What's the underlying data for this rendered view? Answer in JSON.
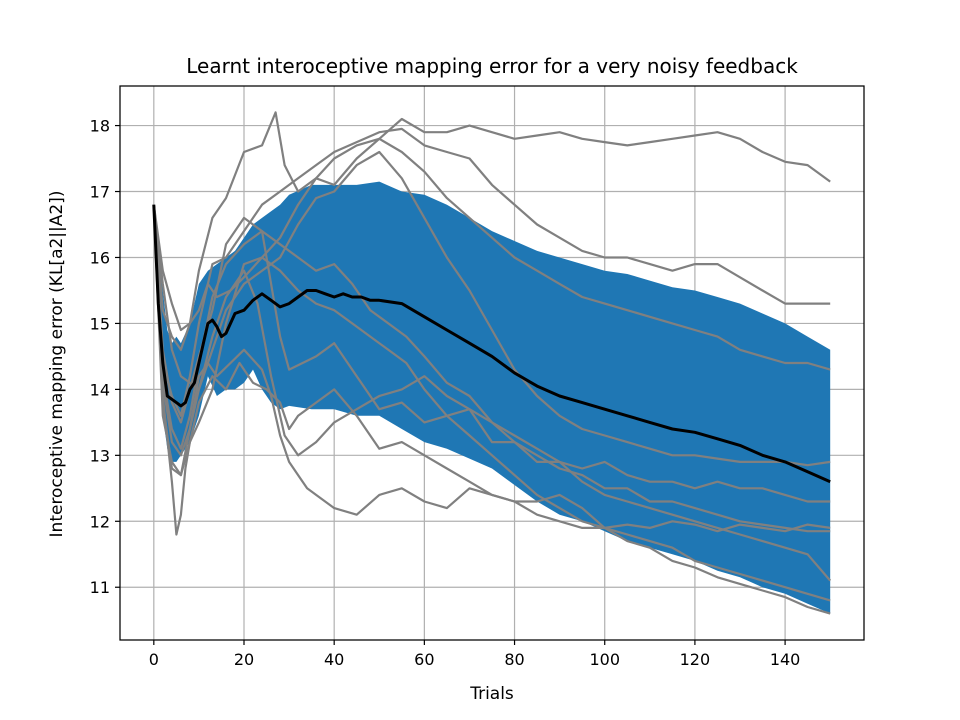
{
  "chart_data": {
    "type": "line",
    "title": "Learnt interoceptive mapping error for a very noisy feedback",
    "xlabel": "Trials",
    "ylabel": "Interoceptive mapping error (KL[a2||A2])",
    "xlim": [
      -7.5,
      157.5
    ],
    "ylim": [
      10.2,
      18.6
    ],
    "xticks": [
      0,
      20,
      40,
      60,
      80,
      100,
      120,
      140
    ],
    "yticks": [
      11,
      12,
      13,
      14,
      15,
      16,
      17,
      18
    ],
    "grid": true,
    "colors": {
      "band": "#1f77b4",
      "individual": "#808080",
      "mean": "#000000",
      "grid": "#b0b0b0"
    },
    "band": {
      "x": [
        0,
        1,
        2,
        3,
        4,
        5,
        6,
        8,
        10,
        12,
        14,
        16,
        18,
        20,
        22,
        24,
        26,
        28,
        30,
        35,
        40,
        45,
        50,
        55,
        60,
        65,
        70,
        75,
        80,
        85,
        90,
        95,
        100,
        105,
        110,
        115,
        120,
        125,
        130,
        135,
        140,
        145,
        150
      ],
      "upper": [
        16.8,
        16.3,
        15.5,
        14.9,
        14.7,
        14.8,
        14.7,
        15.0,
        15.6,
        15.8,
        15.9,
        16.0,
        16.1,
        16.3,
        16.5,
        16.6,
        16.7,
        16.8,
        16.95,
        17.1,
        17.1,
        17.1,
        17.15,
        17.0,
        16.95,
        16.8,
        16.6,
        16.4,
        16.25,
        16.1,
        16.0,
        15.9,
        15.8,
        15.75,
        15.65,
        15.55,
        15.5,
        15.4,
        15.3,
        15.15,
        15.0,
        14.8,
        14.6
      ],
      "lower": [
        16.8,
        15.0,
        13.6,
        13.1,
        12.9,
        12.9,
        13.0,
        13.2,
        13.6,
        14.2,
        13.9,
        14.0,
        14.0,
        14.1,
        14.3,
        14.0,
        13.8,
        13.7,
        13.75,
        13.7,
        13.7,
        13.6,
        13.6,
        13.4,
        13.2,
        13.1,
        12.95,
        12.8,
        12.55,
        12.3,
        12.1,
        12.0,
        11.85,
        11.7,
        11.6,
        11.5,
        11.4,
        11.25,
        11.15,
        11.0,
        10.9,
        10.75,
        10.6
      ]
    },
    "mean": {
      "x": [
        0,
        1,
        2,
        3,
        4,
        5,
        6,
        7,
        8,
        9,
        10,
        11,
        12,
        13,
        14,
        15,
        16,
        17,
        18,
        20,
        22,
        24,
        26,
        28,
        30,
        32,
        34,
        36,
        38,
        40,
        42,
        44,
        46,
        48,
        50,
        55,
        60,
        65,
        70,
        75,
        80,
        85,
        90,
        95,
        100,
        105,
        110,
        115,
        120,
        125,
        130,
        135,
        140,
        145,
        150
      ],
      "y": [
        16.8,
        15.3,
        14.4,
        13.9,
        13.85,
        13.8,
        13.75,
        13.8,
        14.0,
        14.1,
        14.4,
        14.7,
        15.0,
        15.05,
        14.95,
        14.8,
        14.85,
        15.0,
        15.15,
        15.2,
        15.35,
        15.45,
        15.35,
        15.25,
        15.3,
        15.4,
        15.5,
        15.5,
        15.45,
        15.4,
        15.45,
        15.4,
        15.4,
        15.35,
        15.35,
        15.3,
        15.1,
        14.9,
        14.7,
        14.5,
        14.25,
        14.05,
        13.9,
        13.8,
        13.7,
        13.6,
        13.5,
        13.4,
        13.35,
        13.25,
        13.15,
        13.0,
        12.9,
        12.75,
        12.6
      ]
    },
    "series": [
      {
        "x": [
          0,
          2,
          4,
          6,
          8,
          10,
          13,
          16,
          20,
          24,
          27,
          29,
          32,
          36,
          40,
          45,
          50,
          55,
          60,
          65,
          70,
          75,
          80,
          85,
          90,
          95,
          100,
          105,
          110,
          115,
          120,
          125,
          130,
          135,
          140,
          145,
          150
        ],
        "y": [
          16.8,
          15.2,
          14.8,
          14.6,
          15.0,
          15.8,
          16.6,
          16.9,
          17.6,
          17.7,
          18.2,
          17.4,
          17.0,
          17.2,
          17.1,
          17.5,
          17.8,
          18.1,
          17.9,
          17.9,
          18.0,
          17.9,
          17.8,
          17.85,
          17.9,
          17.8,
          17.75,
          17.7,
          17.75,
          17.8,
          17.85,
          17.9,
          17.8,
          17.6,
          17.45,
          17.4,
          17.15
        ]
      },
      {
        "x": [
          0,
          2,
          4,
          6,
          8,
          10,
          13,
          16,
          20,
          24,
          28,
          32,
          36,
          40,
          45,
          50,
          55,
          60,
          65,
          70,
          75,
          80,
          85,
          90,
          95,
          100,
          105,
          110,
          115,
          120,
          125,
          130,
          135,
          140,
          145,
          150
        ],
        "y": [
          16.8,
          14.4,
          13.9,
          13.6,
          14.2,
          15.0,
          15.9,
          16.0,
          16.4,
          16.8,
          17.0,
          17.2,
          17.4,
          17.6,
          17.75,
          17.9,
          17.95,
          17.7,
          17.6,
          17.5,
          17.1,
          16.8,
          16.5,
          16.3,
          16.1,
          16.0,
          16.0,
          15.9,
          15.8,
          15.9,
          15.9,
          15.7,
          15.5,
          15.3,
          15.3,
          15.3
        ]
      },
      {
        "x": [
          0,
          2,
          4,
          6,
          8,
          10,
          12,
          14,
          17,
          20,
          24,
          26,
          28,
          30,
          32,
          34,
          36,
          40,
          45,
          50,
          55,
          60,
          65,
          70,
          75,
          80,
          85,
          90,
          95,
          100,
          105,
          110,
          115,
          120,
          125,
          130,
          135,
          140,
          145,
          150
        ],
        "y": [
          16.8,
          13.8,
          12.8,
          12.7,
          13.4,
          14.2,
          14.4,
          14.2,
          14.4,
          14.6,
          14.3,
          13.9,
          13.3,
          12.9,
          12.7,
          12.5,
          12.4,
          12.2,
          12.1,
          12.4,
          12.5,
          12.3,
          12.2,
          12.5,
          12.4,
          12.3,
          12.1,
          12.0,
          11.9,
          11.9,
          11.95,
          11.9,
          12.0,
          11.95,
          11.85,
          11.95,
          11.9,
          11.85,
          11.95,
          11.9
        ]
      },
      {
        "x": [
          0,
          2,
          4,
          6,
          8,
          10,
          13,
          16,
          20,
          22,
          24,
          26,
          28,
          30,
          33,
          36,
          40,
          45,
          50,
          55,
          60,
          65,
          70,
          75,
          80,
          85,
          90,
          95,
          100,
          105,
          110,
          115,
          120,
          125,
          130,
          135,
          140,
          145,
          150
        ],
        "y": [
          16.8,
          14.6,
          13.8,
          13.5,
          14.0,
          14.5,
          15.2,
          16.2,
          16.6,
          16.5,
          16.4,
          15.6,
          14.8,
          14.3,
          14.4,
          14.5,
          14.7,
          14.2,
          13.7,
          13.8,
          13.5,
          13.6,
          13.7,
          13.2,
          13.2,
          12.9,
          12.9,
          12.8,
          12.9,
          12.7,
          12.6,
          12.6,
          12.5,
          12.6,
          12.5,
          12.5,
          12.4,
          12.3,
          12.3
        ]
      },
      {
        "x": [
          0,
          2,
          4,
          6,
          8,
          10,
          13,
          16,
          20,
          24,
          28,
          32,
          36,
          40,
          45,
          50,
          55,
          60,
          65,
          70,
          75,
          80,
          85,
          90,
          95,
          100,
          105,
          110,
          115,
          120,
          125,
          130,
          135,
          140,
          145,
          150
        ],
        "y": [
          16.8,
          15.6,
          14.6,
          14.2,
          14.1,
          14.0,
          14.6,
          15.2,
          15.6,
          15.8,
          16.0,
          16.5,
          16.9,
          17.0,
          17.4,
          17.6,
          17.2,
          16.6,
          16.0,
          15.5,
          14.9,
          14.3,
          13.9,
          13.6,
          13.4,
          13.3,
          13.2,
          13.1,
          13.0,
          13.0,
          12.95,
          12.9,
          12.9,
          12.9,
          12.85,
          12.9
        ]
      },
      {
        "x": [
          0,
          2,
          4,
          6,
          8,
          10,
          13,
          16,
          19,
          22,
          25,
          28,
          30,
          32,
          36,
          40,
          45,
          50,
          55,
          60,
          65,
          70,
          75,
          80,
          85,
          90,
          95,
          100,
          105,
          110,
          115,
          120,
          125,
          130,
          135,
          140,
          145,
          150
        ],
        "y": [
          16.8,
          13.6,
          12.9,
          12.7,
          13.2,
          13.8,
          14.2,
          14.0,
          14.4,
          14.1,
          14.0,
          13.8,
          13.4,
          13.6,
          13.8,
          14.0,
          13.6,
          13.1,
          13.2,
          13.0,
          12.8,
          12.6,
          12.4,
          12.3,
          12.3,
          12.4,
          12.2,
          11.9,
          11.8,
          11.7,
          11.6,
          11.4,
          11.3,
          11.2,
          11.1,
          11.0,
          10.9,
          10.8
        ]
      },
      {
        "x": [
          0,
          2,
          4,
          6,
          8,
          10,
          13,
          16,
          20,
          24,
          28,
          32,
          36,
          40,
          44,
          48,
          52,
          56,
          60,
          65,
          70,
          75,
          80,
          85,
          90,
          95,
          100,
          105,
          110,
          115,
          120,
          125,
          130,
          135,
          140,
          145,
          150
        ],
        "y": [
          16.8,
          14.2,
          13.4,
          13.1,
          13.6,
          14.4,
          15.4,
          15.9,
          16.2,
          16.4,
          16.2,
          16.0,
          15.8,
          15.9,
          15.6,
          15.2,
          15.0,
          14.8,
          14.5,
          14.1,
          13.9,
          13.5,
          13.3,
          13.1,
          12.9,
          12.6,
          12.4,
          12.3,
          12.2,
          12.1,
          12.0,
          11.9,
          11.8,
          11.7,
          11.6,
          11.5,
          11.1
        ]
      },
      {
        "x": [
          0,
          2,
          4,
          5,
          6,
          7,
          8,
          10,
          13,
          16,
          20,
          24,
          28,
          32,
          36,
          40,
          44,
          48,
          52,
          56,
          60,
          65,
          70,
          75,
          80,
          85,
          90,
          95,
          100,
          105,
          110,
          115,
          120,
          125,
          130,
          135,
          140,
          145,
          150
        ],
        "y": [
          16.8,
          13.9,
          12.6,
          11.8,
          12.1,
          12.8,
          13.2,
          13.5,
          14.0,
          15.0,
          15.9,
          16.0,
          15.8,
          15.5,
          15.3,
          15.2,
          15.0,
          14.8,
          14.6,
          14.4,
          14.0,
          13.6,
          13.3,
          13.0,
          12.7,
          12.4,
          12.2,
          12.0,
          11.9,
          11.7,
          11.6,
          11.4,
          11.3,
          11.15,
          11.05,
          10.95,
          10.85,
          10.7,
          10.6
        ]
      },
      {
        "x": [
          0,
          2,
          4,
          6,
          8,
          10,
          13,
          16,
          20,
          23,
          26,
          29,
          32,
          36,
          40,
          45,
          50,
          55,
          60,
          65,
          70,
          75,
          80,
          85,
          90,
          95,
          100,
          105,
          110,
          115,
          120,
          125,
          130,
          135,
          140,
          145,
          150
        ],
        "y": [
          16.8,
          14.1,
          13.2,
          13.0,
          13.4,
          14.0,
          14.8,
          15.4,
          15.8,
          15.3,
          14.2,
          13.3,
          13.0,
          13.2,
          13.5,
          13.7,
          13.9,
          14.0,
          14.2,
          13.9,
          13.7,
          13.5,
          13.2,
          13.0,
          12.8,
          12.7,
          12.5,
          12.5,
          12.3,
          12.3,
          12.2,
          12.1,
          12.0,
          11.95,
          11.9,
          11.85,
          11.85
        ]
      },
      {
        "x": [
          0,
          2,
          4,
          6,
          8,
          10,
          12,
          14,
          17,
          20,
          24,
          28,
          32,
          36,
          40,
          45,
          50,
          55,
          60,
          65,
          70,
          75,
          80,
          85,
          90,
          95,
          100,
          105,
          110,
          115,
          120,
          125,
          130,
          135,
          140,
          145,
          150
        ],
        "y": [
          16.8,
          15.8,
          15.3,
          14.9,
          15.0,
          15.2,
          15.6,
          15.4,
          15.5,
          15.7,
          16.0,
          16.3,
          16.8,
          17.2,
          17.5,
          17.7,
          17.8,
          17.6,
          17.3,
          16.9,
          16.6,
          16.3,
          16.0,
          15.8,
          15.6,
          15.4,
          15.3,
          15.2,
          15.1,
          15.0,
          14.9,
          14.8,
          14.6,
          14.5,
          14.4,
          14.4,
          14.3
        ]
      }
    ]
  }
}
